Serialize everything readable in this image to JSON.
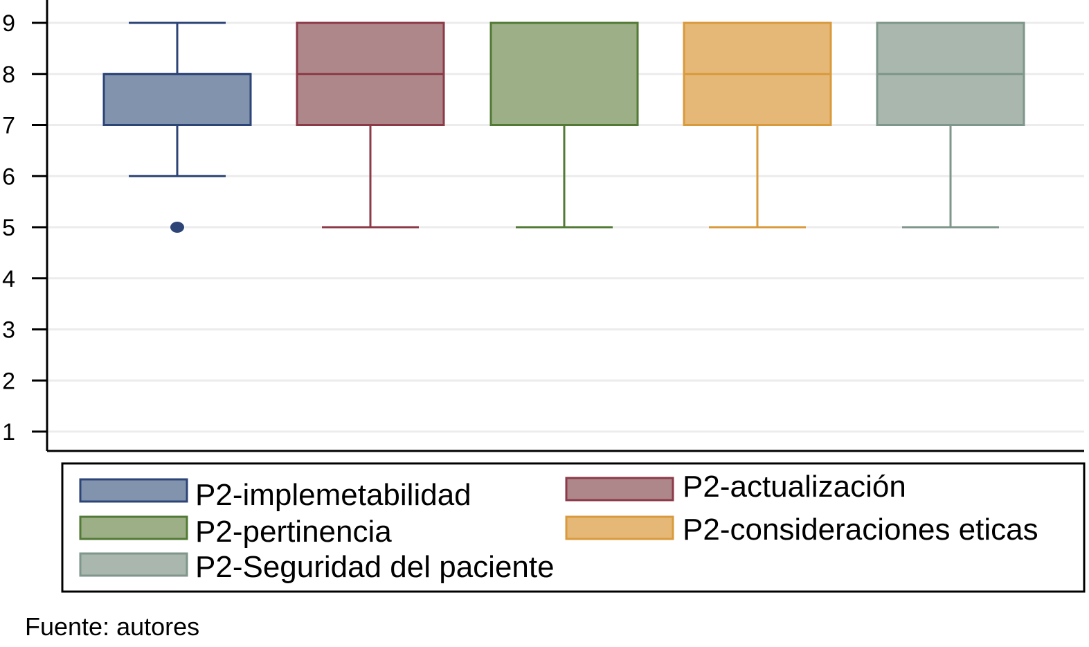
{
  "chart_data": {
    "type": "box",
    "yticks": [
      1,
      2,
      3,
      4,
      5,
      6,
      7,
      8,
      9
    ],
    "ylim": [
      1,
      9
    ],
    "grid": true,
    "legend_position": "bottom",
    "series": [
      {
        "name": "P2-implemetabilidad",
        "whisker_low": 6,
        "q1": 7,
        "median": 8,
        "q3": 8,
        "whisker_high": 9,
        "outliers": [
          5
        ],
        "fill": "#8293ad",
        "stroke": "#2c4476"
      },
      {
        "name": "P2-actualización",
        "whisker_low": 5,
        "q1": 7,
        "median": 8,
        "q3": 9,
        "whisker_high": 9,
        "outliers": [],
        "fill": "#ae878b",
        "stroke": "#8c3a48"
      },
      {
        "name": "P2-pertinencia",
        "whisker_low": 5,
        "q1": 7,
        "median": 9,
        "q3": 9,
        "whisker_high": 9,
        "outliers": [],
        "fill": "#9caf86",
        "stroke": "#527a36"
      },
      {
        "name": "P2-consideraciones eticas",
        "whisker_low": 5,
        "q1": 7,
        "median": 8,
        "q3": 9,
        "whisker_high": 9,
        "outliers": [],
        "fill": "#e5b877",
        "stroke": "#d99a3c"
      },
      {
        "name": "P2-Seguridad del paciente",
        "whisker_low": 5,
        "q1": 7,
        "median": 8,
        "q3": 9,
        "whisker_high": 9,
        "outliers": [],
        "fill": "#a9b7ae",
        "stroke": "#7f968a"
      }
    ]
  },
  "source_note": "Fuente: autores"
}
